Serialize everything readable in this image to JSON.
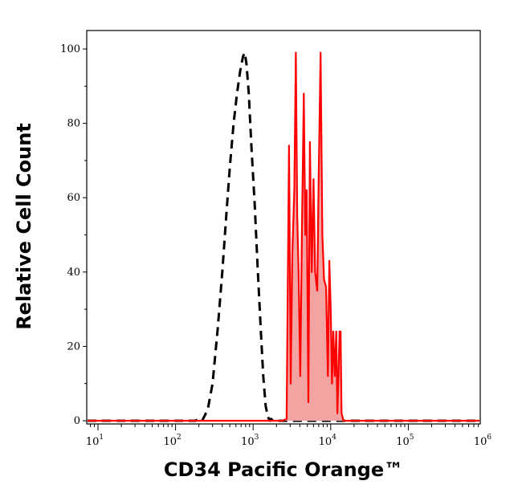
{
  "chart_data": {
    "type": "line",
    "title": "",
    "xlabel": "CD34 Pacific Orange™",
    "ylabel": "Relative Cell Count",
    "xscale": "log",
    "xlim": [
      10,
      1000000
    ],
    "ylim": [
      0,
      100
    ],
    "x_tick_labels": [
      {
        "base": "10",
        "exp": "1"
      },
      {
        "base": "10",
        "exp": "2"
      },
      {
        "base": "10",
        "exp": "3"
      },
      {
        "base": "10",
        "exp": "4"
      },
      {
        "base": "10",
        "exp": "5"
      },
      {
        "base": "10",
        "exp": "6"
      }
    ],
    "y_ticks": [
      0,
      20,
      40,
      60,
      80,
      100
    ],
    "y_tick_labels": [
      "0",
      "20",
      "40",
      "60",
      "80",
      "100"
    ],
    "grid": false,
    "legend": "none",
    "series": [
      {
        "style": "dashed",
        "color": "#000000",
        "fill": false,
        "points": [
          [
            7,
            0
          ],
          [
            180,
            0
          ],
          [
            200,
            0.5
          ],
          [
            220,
            0
          ],
          [
            260,
            3
          ],
          [
            300,
            10
          ],
          [
            350,
            25
          ],
          [
            400,
            40
          ],
          [
            450,
            55
          ],
          [
            500,
            68
          ],
          [
            560,
            80
          ],
          [
            620,
            88
          ],
          [
            680,
            94
          ],
          [
            740,
            98
          ],
          [
            780,
            99
          ],
          [
            820,
            96
          ],
          [
            880,
            88
          ],
          [
            950,
            74
          ],
          [
            1050,
            58
          ],
          [
            1150,
            40
          ],
          [
            1250,
            25
          ],
          [
            1350,
            12
          ],
          [
            1450,
            4
          ],
          [
            1550,
            1
          ],
          [
            1650,
            0
          ],
          [
            1700,
            0.5
          ],
          [
            1800,
            0
          ],
          [
            1000000,
            0
          ]
        ]
      },
      {
        "style": "solid",
        "color": "#ff0000",
        "fill": true,
        "fill_color": "#f4a3a3",
        "points": [
          [
            7,
            0
          ],
          [
            2400,
            0
          ],
          [
            2700,
            0.5
          ],
          [
            2900,
            74
          ],
          [
            3050,
            10
          ],
          [
            3200,
            45
          ],
          [
            3400,
            62
          ],
          [
            3550,
            99
          ],
          [
            3700,
            55
          ],
          [
            3850,
            40
          ],
          [
            4050,
            12
          ],
          [
            4250,
            50
          ],
          [
            4500,
            88
          ],
          [
            4700,
            50
          ],
          [
            4900,
            62
          ],
          [
            5150,
            5
          ],
          [
            5400,
            75
          ],
          [
            5700,
            40
          ],
          [
            6000,
            65
          ],
          [
            6300,
            40
          ],
          [
            6700,
            35
          ],
          [
            7000,
            65
          ],
          [
            7400,
            99
          ],
          [
            7800,
            50
          ],
          [
            8200,
            38
          ],
          [
            8700,
            36
          ],
          [
            9200,
            12
          ],
          [
            9600,
            43
          ],
          [
            10000,
            30
          ],
          [
            10400,
            10
          ],
          [
            10800,
            24
          ],
          [
            11300,
            12
          ],
          [
            11800,
            24
          ],
          [
            12200,
            2
          ],
          [
            12600,
            12
          ],
          [
            13000,
            24
          ],
          [
            13400,
            24
          ],
          [
            13800,
            2
          ],
          [
            14200,
            1
          ],
          [
            14600,
            0
          ],
          [
            1000000,
            0
          ]
        ]
      }
    ]
  }
}
